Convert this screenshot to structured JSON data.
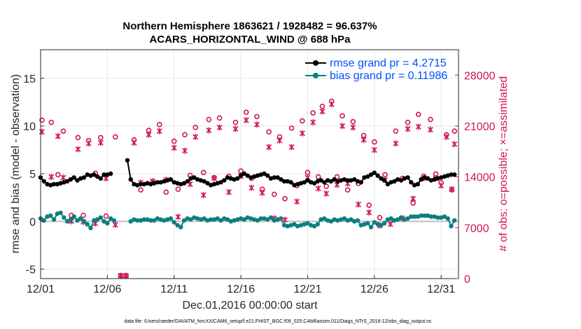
{
  "chart_data": {
    "type": "line",
    "title_line1": "Northern Hemisphere 1863621 / 1928482 = 96.637%",
    "title_line2": "ACARS_HORIZONTAL_WIND @ 688 hPa",
    "xlabel": "Dec.01,2016 00:00:00 start",
    "ylabel_left": "rmse and bias (model - observation)",
    "ylabel_right": "# of obs: o=possible; ×=assimilated",
    "footer": "data file: /Users/raeder/DAI/ATM_forcXX/CAM6_setup/f.e21.FHIST_BGC.f09_025.CAM6assim.011/Diags_NTrS_2016-12/obs_diag_output.nc",
    "xlim": [
      0,
      31.3
    ],
    "ylim_left": [
      -6,
      18
    ],
    "ylim_right": [
      0,
      31500
    ],
    "x_ticks": [
      {
        "v": 0,
        "label": "12/01"
      },
      {
        "v": 5,
        "label": "12/06"
      },
      {
        "v": 10,
        "label": "12/11"
      },
      {
        "v": 15,
        "label": "12/16"
      },
      {
        "v": 20,
        "label": "12/21"
      },
      {
        "v": 25,
        "label": "12/26"
      },
      {
        "v": 30,
        "label": "12/31"
      }
    ],
    "y_ticks_left": [
      {
        "v": -5,
        "label": "-5"
      },
      {
        "v": 0,
        "label": "0"
      },
      {
        "v": 5,
        "label": "5"
      },
      {
        "v": 10,
        "label": "10"
      },
      {
        "v": 15,
        "label": "15"
      }
    ],
    "y_ticks_right": [
      {
        "v": 0,
        "label": "0"
      },
      {
        "v": 7000,
        "label": "7000"
      },
      {
        "v": 14000,
        "label": "14000"
      },
      {
        "v": 21000,
        "label": "21000"
      },
      {
        "v": 28000,
        "label": "28000"
      }
    ],
    "grid": true,
    "legend_position": "top-right",
    "colors": {
      "rmse": "#000000",
      "bias": "#0a7f7f",
      "obs": "#d0145a",
      "zero_line": "#bfbfbf",
      "legend_text": "#0050ff"
    },
    "series": [
      {
        "name": "rmse grand pr = 4.2715",
        "x": [
          0,
          0.25,
          0.5,
          0.75,
          1,
          1.25,
          1.5,
          1.75,
          2,
          2.25,
          2.5,
          2.75,
          3,
          3.25,
          3.5,
          3.75,
          4,
          4.25,
          4.5,
          4.75,
          5,
          5.25,
          5.5,
          5.75,
          6,
          6.25,
          6.5,
          6.75,
          7,
          7.25,
          7.5,
          7.75,
          8,
          8.25,
          8.5,
          8.75,
          9,
          9.25,
          9.5,
          9.75,
          10,
          10.25,
          10.5,
          10.75,
          11,
          11.25,
          11.5,
          11.75,
          12,
          12.25,
          12.5,
          12.75,
          13,
          13.25,
          13.5,
          13.75,
          14,
          14.25,
          14.5,
          14.75,
          15,
          15.25,
          15.5,
          15.75,
          16,
          16.25,
          16.5,
          16.75,
          17,
          17.25,
          17.5,
          17.75,
          18,
          18.25,
          18.5,
          18.75,
          19,
          19.25,
          19.5,
          19.75,
          20,
          20.25,
          20.5,
          20.75,
          21,
          21.25,
          21.5,
          21.75,
          22,
          22.25,
          22.5,
          22.75,
          23,
          23.25,
          23.5,
          23.75,
          24,
          24.25,
          24.5,
          24.75,
          25,
          25.25,
          25.5,
          25.75,
          26,
          26.25,
          26.5,
          26.75,
          27,
          27.25,
          27.5,
          27.75,
          28,
          28.25,
          28.5,
          28.75,
          29,
          29.25,
          29.5,
          29.75,
          30,
          30.25,
          30.5,
          30.75,
          31
        ],
        "values": [
          4.6,
          4.2,
          3.9,
          3.8,
          3.9,
          3.9,
          4.0,
          4.1,
          4.2,
          4.4,
          4.6,
          4.3,
          4.5,
          4.6,
          4.9,
          4.8,
          4.9,
          4.7,
          4.5,
          4.9,
          4.9,
          5.0,
          null,
          null,
          null,
          null,
          6.4,
          4.4,
          3.9,
          3.8,
          3.9,
          3.9,
          4.0,
          3.9,
          4.0,
          4.1,
          4.1,
          4.2,
          4.3,
          4.4,
          4.1,
          4.0,
          3.9,
          4.0,
          4.2,
          4.5,
          4.6,
          4.4,
          4.3,
          4.2,
          4.0,
          3.8,
          3.9,
          4.0,
          4.1,
          4.3,
          4.6,
          4.5,
          4.4,
          4.5,
          4.8,
          5.0,
          4.8,
          4.6,
          4.7,
          4.8,
          4.9,
          5.0,
          4.8,
          4.5,
          4.6,
          4.6,
          4.4,
          4.2,
          4.2,
          4.1,
          3.8,
          3.9,
          4.0,
          4.1,
          4.3,
          4.1,
          4.0,
          4.2,
          4.3,
          4.1,
          4.3,
          4.2,
          4.4,
          4.2,
          4.3,
          4.4,
          4.3,
          4.3,
          4.4,
          4.2,
          4.1,
          4.6,
          4.7,
          4.9,
          5.1,
          4.8,
          4.5,
          4.3,
          3.9,
          4.1,
          4.2,
          4.4,
          4.3,
          4.5,
          4.6,
          4.1,
          3.8,
          3.9,
          4.4,
          4.6,
          4.5,
          4.3,
          4.4,
          4.5,
          4.6,
          4.7,
          4.8,
          4.9,
          4.9
        ],
        "color": "#000000"
      },
      {
        "name": "bias grand pr = 0.11986",
        "x": [
          0,
          0.25,
          0.5,
          0.75,
          1,
          1.25,
          1.5,
          1.75,
          2,
          2.25,
          2.5,
          2.75,
          3,
          3.25,
          3.5,
          3.75,
          4,
          4.25,
          4.5,
          4.75,
          5,
          5.25,
          5.5,
          5.75,
          6,
          6.25,
          6.5,
          6.75,
          7,
          7.25,
          7.5,
          7.75,
          8,
          8.25,
          8.5,
          8.75,
          9,
          9.25,
          9.5,
          9.75,
          10,
          10.25,
          10.5,
          10.75,
          11,
          11.25,
          11.5,
          11.75,
          12,
          12.25,
          12.5,
          12.75,
          13,
          13.25,
          13.5,
          13.75,
          14,
          14.25,
          14.5,
          14.75,
          15,
          15.25,
          15.5,
          15.75,
          16,
          16.25,
          16.5,
          16.75,
          17,
          17.25,
          17.5,
          17.75,
          18,
          18.25,
          18.5,
          18.75,
          19,
          19.25,
          19.5,
          19.75,
          20,
          20.25,
          20.5,
          20.75,
          21,
          21.25,
          21.5,
          21.75,
          22,
          22.25,
          22.5,
          22.75,
          23,
          23.25,
          23.5,
          23.75,
          24,
          24.25,
          24.5,
          24.75,
          25,
          25.25,
          25.5,
          25.75,
          26,
          26.25,
          26.5,
          26.75,
          27,
          27.25,
          27.5,
          27.75,
          28,
          28.25,
          28.5,
          28.75,
          29,
          29.25,
          29.5,
          29.75,
          30,
          30.25,
          30.5,
          30.75,
          31
        ],
        "values": [
          0.3,
          0.1,
          0.5,
          0.6,
          0.2,
          0.8,
          0.9,
          0.4,
          0.0,
          0.2,
          0.5,
          0.1,
          0.3,
          0.0,
          -0.3,
          -0.7,
          0.1,
          0.2,
          0.4,
          0.0,
          -0.2,
          0.3,
          0.1,
          null,
          null,
          null,
          null,
          0.0,
          0.2,
          0.1,
          0.1,
          0.2,
          0.2,
          0.1,
          0.1,
          0.3,
          0.2,
          0.1,
          0.2,
          0.3,
          -0.1,
          -0.4,
          -0.6,
          0.1,
          0.3,
          0.2,
          0.4,
          0.3,
          0.2,
          0.3,
          0.1,
          0.2,
          0.2,
          0.3,
          0.1,
          0.3,
          0.2,
          0.0,
          0.1,
          0.2,
          0.3,
          0.2,
          0.4,
          0.3,
          0.2,
          0.1,
          0.3,
          0.3,
          0.2,
          0.4,
          0.1,
          0.2,
          0.3,
          -0.4,
          -0.5,
          -0.4,
          -0.3,
          -0.5,
          -0.4,
          -0.3,
          -0.2,
          -0.4,
          -0.5,
          -0.3,
          0.2,
          0.3,
          0.1,
          0.0,
          0.2,
          0.1,
          0.2,
          0.3,
          0.1,
          0.2,
          0.0,
          0.1,
          -0.4,
          -0.3,
          -0.2,
          -0.6,
          -0.1,
          -0.3,
          -0.4,
          -0.2,
          0.2,
          0.3,
          0.1,
          0.2,
          0.4,
          0.2,
          0.3,
          0.5,
          0.5,
          0.5,
          0.6,
          0.6,
          0.6,
          0.5,
          0.5,
          0.4,
          0.4,
          0.5,
          0.3,
          -0.5,
          0.1
        ],
        "color": "#0a7f7f"
      },
      {
        "name": "possible",
        "x": [
          0.1,
          0.8,
          1.3,
          1.7,
          2.3,
          2.8,
          3.2,
          3.6,
          4.1,
          4.5,
          4.9,
          5.6,
          6.0,
          6.4,
          7.0,
          7.5,
          8.1,
          8.4,
          8.9,
          9.4,
          10.0,
          10.3,
          10.8,
          11.2,
          11.6,
          12.2,
          12.6,
          13.0,
          13.4,
          14.1,
          14.6,
          15.0,
          15.4,
          15.8,
          16.2,
          16.6,
          17.1,
          17.5,
          17.9,
          18.3,
          18.8,
          19.2,
          19.6,
          20.0,
          20.4,
          20.8,
          21.1,
          21.4,
          21.8,
          22.2,
          22.6,
          23.0,
          23.4,
          23.8,
          24.2,
          24.6,
          25.0,
          25.4,
          25.8,
          26.2,
          26.6,
          27.1,
          27.5,
          27.9,
          28.3,
          28.7,
          29.2,
          29.6,
          30.0,
          30.4,
          30.8,
          31.0
        ],
        "values": [
          21800,
          21500,
          14300,
          20300,
          8700,
          19400,
          8700,
          19000,
          14500,
          19400,
          8600,
          19500,
          400,
          400,
          19100,
          12200,
          20400,
          13300,
          21200,
          11900,
          18900,
          12300,
          19800,
          14200,
          20800,
          14600,
          21900,
          13900,
          22100,
          14100,
          21500,
          14800,
          22900,
          13800,
          22300,
          12300,
          20200,
          11600,
          19500,
          11000,
          20700,
          12800,
          21700,
          14600,
          22800,
          14000,
          23700,
          12700,
          24400,
          14000,
          22400,
          12200,
          21600,
          13100,
          19700,
          10100,
          18800,
          8400,
          14300,
          7900,
          20300,
          13800,
          21500,
          10400,
          22600,
          14100,
          21900,
          14400,
          13200,
          19800,
          12200,
          20300
        ],
        "color": "#d0145a"
      },
      {
        "name": "assimilated",
        "x": [
          0.1,
          0.8,
          1.3,
          1.7,
          2.3,
          2.8,
          3.2,
          3.6,
          4.1,
          4.5,
          4.9,
          5.6,
          6.0,
          6.4,
          7.0,
          7.5,
          8.1,
          8.4,
          8.9,
          9.4,
          10.0,
          10.3,
          10.8,
          11.2,
          11.6,
          12.2,
          12.6,
          13.0,
          13.4,
          14.1,
          14.6,
          15.0,
          15.4,
          15.8,
          16.2,
          16.6,
          17.1,
          17.5,
          17.9,
          18.3,
          18.8,
          19.2,
          19.6,
          20.0,
          20.4,
          20.8,
          21.1,
          21.4,
          21.8,
          22.2,
          22.6,
          23.0,
          23.4,
          23.8,
          24.2,
          24.6,
          25.0,
          25.4,
          25.8,
          26.2,
          26.6,
          27.1,
          27.5,
          27.9,
          28.3,
          28.7,
          29.2,
          29.6,
          30.0,
          30.4,
          30.8,
          31.0
        ],
        "values": [
          20200,
          14000,
          19600,
          13900,
          7900,
          17800,
          7800,
          18600,
          7600,
          18700,
          13800,
          7400,
          400,
          400,
          18700,
          13200,
          19800,
          13400,
          20300,
          13600,
          18000,
          8500,
          17600,
          13000,
          19500,
          11500,
          20400,
          13800,
          20800,
          11900,
          20600,
          14100,
          21800,
          12500,
          21200,
          11800,
          18100,
          8300,
          19000,
          8100,
          18100,
          10600,
          20000,
          13900,
          21500,
          12400,
          23000,
          11700,
          24000,
          12900,
          21000,
          13100,
          20800,
          10200,
          19100,
          9100,
          17700,
          7300,
          13600,
          7500,
          18600,
          8300,
          20600,
          11000,
          20900,
          13800,
          20500,
          13800,
          12800,
          19500,
          12300,
          18500
        ],
        "color": "#d0145a"
      }
    ]
  }
}
